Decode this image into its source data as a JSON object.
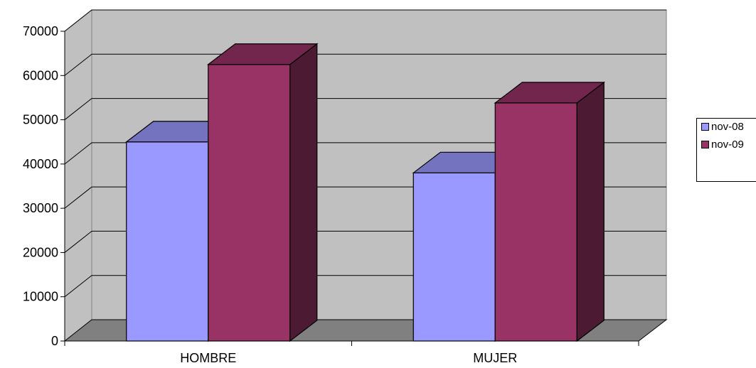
{
  "chart_data": {
    "type": "bar",
    "categories": [
      "HOMBRE",
      "MUJER"
    ],
    "series": [
      {
        "name": "nov-08",
        "values": [
          45000,
          38000
        ],
        "color": "#9999ff"
      },
      {
        "name": "nov-09",
        "values": [
          62500,
          53800
        ],
        "color": "#993366"
      }
    ],
    "ylim": [
      0,
      70000
    ],
    "yticks": [
      0,
      10000,
      20000,
      30000,
      40000,
      50000,
      60000,
      70000
    ],
    "title": "",
    "xlabel": "",
    "ylabel": "",
    "grid": true,
    "legend_position": "right",
    "style": "3d-clustered-column",
    "wall_color": "#c0c0c0",
    "floor_color": "#808080"
  },
  "legend": {
    "items": [
      {
        "label": "nov-08",
        "color": "#9999ff"
      },
      {
        "label": "nov-09",
        "color": "#993366"
      }
    ]
  }
}
